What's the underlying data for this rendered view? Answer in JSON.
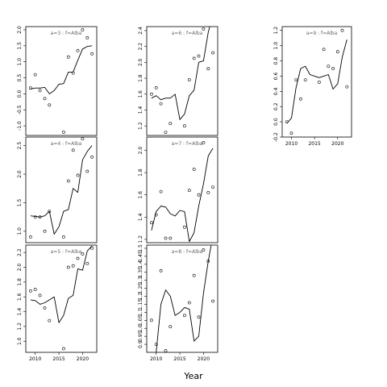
{
  "figure": {
    "xlabel": "Year"
  },
  "chart_data": [
    {
      "type": "line",
      "title": "a=3 : f=Alba",
      "xlim": [
        2008,
        2023
      ],
      "ylim": [
        -1.3,
        2.1
      ],
      "xticks": [],
      "yticks": [
        -1.0,
        -0.5,
        0.0,
        0.5,
        1.0,
        1.5,
        2.0
      ],
      "ytick_labels": [
        "-1.0",
        "-0.5",
        "0.0",
        "0.5",
        "1.0",
        "1.5",
        "2.0"
      ],
      "series": [
        {
          "kind": "line",
          "x": [
            2009,
            2010,
            2011,
            2012,
            2013,
            2014,
            2015,
            2016,
            2017,
            2018,
            2019,
            2020,
            2021,
            2022
          ],
          "y": [
            0.15,
            0.18,
            0.18,
            0.2,
            0.0,
            0.1,
            0.3,
            0.32,
            0.68,
            0.68,
            1.05,
            1.4,
            1.48,
            1.5
          ]
        },
        {
          "kind": "points",
          "x": [
            2009,
            2010,
            2011,
            2012,
            2013,
            2016,
            2017,
            2018,
            2019,
            2020,
            2021,
            2022
          ],
          "y": [
            0.18,
            0.6,
            0.1,
            -0.15,
            -0.35,
            -1.2,
            1.15,
            0.65,
            1.35,
            2.0,
            1.75,
            1.25
          ]
        }
      ]
    },
    {
      "type": "line",
      "title": "a=4 : f=Alba",
      "xlim": [
        2008,
        2023
      ],
      "ylim": [
        0.8,
        2.65
      ],
      "xticks": [],
      "yticks": [
        1.0,
        1.5,
        2.0,
        2.5
      ],
      "ytick_labels": [
        "1.0",
        "1.5",
        "2.0",
        "2.5"
      ],
      "series": [
        {
          "kind": "line",
          "x": [
            2009,
            2010,
            2011,
            2012,
            2013,
            2014,
            2015,
            2016,
            2017,
            2018,
            2019,
            2020,
            2021,
            2022
          ],
          "y": [
            1.27,
            1.26,
            1.25,
            1.27,
            1.35,
            0.95,
            1.08,
            1.35,
            1.38,
            1.75,
            1.68,
            2.25,
            2.4,
            2.5
          ]
        },
        {
          "kind": "points",
          "x": [
            2009,
            2010,
            2011,
            2012,
            2013,
            2016,
            2017,
            2018,
            2019,
            2020,
            2021,
            2022
          ],
          "y": [
            0.9,
            1.25,
            1.25,
            1.0,
            1.35,
            0.9,
            1.88,
            2.42,
            1.98,
            2.62,
            2.05,
            2.3
          ]
        }
      ]
    },
    {
      "type": "line",
      "title": "a=5 : f=Alba",
      "xlim": [
        2008,
        2023
      ],
      "ylim": [
        0.85,
        2.3
      ],
      "xticks": [
        2010,
        2015,
        2020
      ],
      "xtick_labels": [
        "2010",
        "2015",
        "2020"
      ],
      "yticks": [
        1.0,
        1.2,
        1.4,
        1.6,
        1.8,
        2.0,
        2.2
      ],
      "ytick_labels": [
        "1.0",
        "1.2",
        "1.4",
        "1.6",
        "1.8",
        "2.0",
        "2.2"
      ],
      "series": [
        {
          "kind": "line",
          "x": [
            2009,
            2010,
            2011,
            2012,
            2013,
            2014,
            2015,
            2016,
            2017,
            2018,
            2019,
            2020,
            2021,
            2022
          ],
          "y": [
            1.56,
            1.55,
            1.5,
            1.52,
            1.56,
            1.6,
            1.25,
            1.35,
            1.58,
            1.62,
            1.98,
            1.96,
            2.22,
            2.29
          ]
        },
        {
          "kind": "points",
          "x": [
            2009,
            2010,
            2011,
            2012,
            2013,
            2016,
            2017,
            2018,
            2019,
            2020,
            2021,
            2022
          ],
          "y": [
            1.68,
            1.7,
            1.62,
            1.45,
            1.28,
            0.9,
            2.0,
            2.02,
            2.12,
            2.18,
            2.05,
            2.26
          ]
        }
      ]
    },
    {
      "type": "line",
      "title": "a=6 : f=Alba",
      "xlim": [
        2008,
        2023
      ],
      "ylim": [
        1.08,
        2.45
      ],
      "xticks": [],
      "yticks": [
        1.2,
        1.4,
        1.6,
        1.8,
        2.0,
        2.2,
        2.4
      ],
      "ytick_labels": [
        "1.2",
        "1.4",
        "1.6",
        "1.8",
        "2.0",
        "2.2",
        "2.4"
      ],
      "series": [
        {
          "kind": "line",
          "x": [
            2009,
            2010,
            2011,
            2012,
            2013,
            2014,
            2015,
            2016,
            2017,
            2018,
            2019,
            2020,
            2021,
            2022
          ],
          "y": [
            1.55,
            1.58,
            1.53,
            1.55,
            1.55,
            1.6,
            1.28,
            1.35,
            1.58,
            1.65,
            2.0,
            2.02,
            2.38,
            2.6
          ]
        },
        {
          "kind": "points",
          "x": [
            2009,
            2010,
            2011,
            2012,
            2013,
            2016,
            2017,
            2018,
            2019,
            2020,
            2021,
            2022
          ],
          "y": [
            1.6,
            1.68,
            1.48,
            1.12,
            1.23,
            1.2,
            1.78,
            2.05,
            2.08,
            2.42,
            1.92,
            2.12
          ]
        }
      ]
    },
    {
      "type": "line",
      "title": "a=7 : f=Alba",
      "xlim": [
        2008,
        2023
      ],
      "ylim": [
        1.17,
        2.12
      ],
      "xticks": [],
      "yticks": [
        1.2,
        1.4,
        1.6,
        1.8,
        2.0
      ],
      "ytick_labels": [
        "1.2",
        "1.4",
        "1.6",
        "1.8",
        "2.0"
      ],
      "series": [
        {
          "kind": "line",
          "x": [
            2009,
            2010,
            2011,
            2012,
            2013,
            2014,
            2015,
            2016,
            2017,
            2018,
            2019,
            2020,
            2021,
            2022
          ],
          "y": [
            1.28,
            1.45,
            1.5,
            1.49,
            1.43,
            1.41,
            1.46,
            1.45,
            1.18,
            1.26,
            1.5,
            1.7,
            1.95,
            2.02
          ]
        },
        {
          "kind": "points",
          "x": [
            2009,
            2010,
            2011,
            2012,
            2013,
            2016,
            2017,
            2018,
            2019,
            2020,
            2021,
            2022
          ],
          "y": [
            1.35,
            1.42,
            1.63,
            1.21,
            1.21,
            1.31,
            1.64,
            1.83,
            1.6,
            2.07,
            1.62,
            1.67
          ]
        }
      ]
    },
    {
      "type": "line",
      "title": "a=8 : f=Alba",
      "xlim": [
        2008,
        2023
      ],
      "ylim": [
        0.85,
        1.52
      ],
      "xticks": [
        2010,
        2015,
        2020
      ],
      "xtick_labels": [
        "2010",
        "2015",
        "2020"
      ],
      "yticks": [
        0.9,
        0.95,
        1.0,
        1.05,
        1.1,
        1.15,
        1.2,
        1.25,
        1.3,
        1.35,
        1.4,
        1.45,
        1.5
      ],
      "ytick_labels": [
        "0.9",
        "0.95",
        "1.0",
        "1.05",
        "1.1",
        "1.15",
        "1.2",
        "1.25",
        "1.3",
        "1.35",
        "1.4",
        "1.45",
        "1.5"
      ],
      "series": [
        {
          "kind": "line",
          "x": [
            2009,
            2010,
            2011,
            2012,
            2013,
            2014,
            2015,
            2016,
            2017,
            2018,
            2019,
            2020,
            2021,
            2022
          ],
          "y": [
            0.65,
            0.85,
            1.15,
            1.24,
            1.2,
            1.08,
            1.1,
            1.13,
            1.12,
            0.92,
            0.95,
            1.22,
            1.42,
            1.58
          ]
        },
        {
          "kind": "points",
          "x": [
            2009,
            2010,
            2011,
            2012,
            2013,
            2016,
            2017,
            2018,
            2019,
            2020,
            2021,
            2022
          ],
          "y": [
            1.05,
            0.9,
            1.36,
            0.86,
            1.01,
            1.08,
            1.16,
            1.33,
            1.07,
            1.49,
            1.42,
            1.17
          ]
        }
      ]
    },
    {
      "type": "line",
      "title": "a=9 : f=Alba",
      "xlim": [
        2008,
        2023
      ],
      "ylim": [
        -0.2,
        1.25
      ],
      "xticks": [
        2010,
        2015,
        2020
      ],
      "xtick_labels": [
        "2010",
        "2015",
        "2020"
      ],
      "yticks": [
        -0.2,
        0.0,
        0.2,
        0.4,
        0.6,
        0.8,
        1.0,
        1.2
      ],
      "ytick_labels": [
        "-0.2",
        "0.0",
        "0.2",
        "0.4",
        "0.6",
        "0.8",
        "1.0",
        "1.2"
      ],
      "series": [
        {
          "kind": "line",
          "x": [
            2009,
            2010,
            2011,
            2012,
            2013,
            2014,
            2015,
            2016,
            2017,
            2018,
            2019,
            2020,
            2021,
            2022
          ],
          "y": [
            -0.02,
            0.05,
            0.45,
            0.7,
            0.73,
            0.62,
            0.6,
            0.58,
            0.6,
            0.62,
            0.43,
            0.5,
            0.85,
            1.08
          ]
        },
        {
          "kind": "points",
          "x": [
            2009,
            2010,
            2011,
            2012,
            2013,
            2016,
            2017,
            2018,
            2019,
            2020,
            2021,
            2022
          ],
          "y": [
            0.0,
            -0.15,
            0.55,
            0.3,
            0.55,
            0.52,
            0.95,
            0.73,
            0.7,
            0.92,
            1.2,
            0.46
          ]
        }
      ]
    }
  ]
}
